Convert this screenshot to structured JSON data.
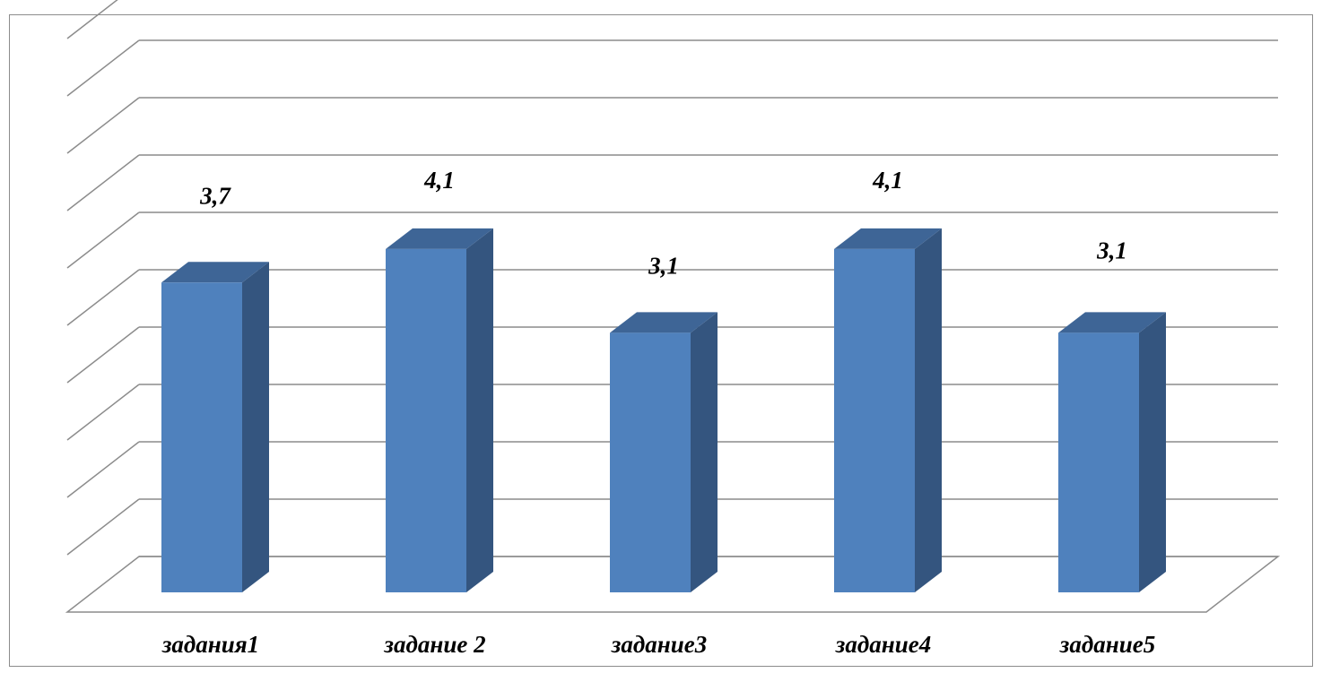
{
  "chart_data": {
    "type": "bar",
    "style": "3d-column",
    "categories": [
      "задания1",
      "задание 2",
      "задание3",
      "задание4",
      "задание5"
    ],
    "series": [
      {
        "values": [
          3.7,
          4.1,
          3.1,
          4.1,
          3.1
        ]
      }
    ],
    "data_labels": [
      "3,7",
      "4,1",
      "3,1",
      "4,1",
      "3,1"
    ],
    "ylim": [
      0,
      5
    ],
    "gridlines": 10,
    "y_axis_labels": false,
    "legend": "none",
    "colors": {
      "bar_front": "#4f81bd",
      "bar_side": "#34557f",
      "bar_top": "#3e6596",
      "grid": "#8c8c8c"
    }
  }
}
